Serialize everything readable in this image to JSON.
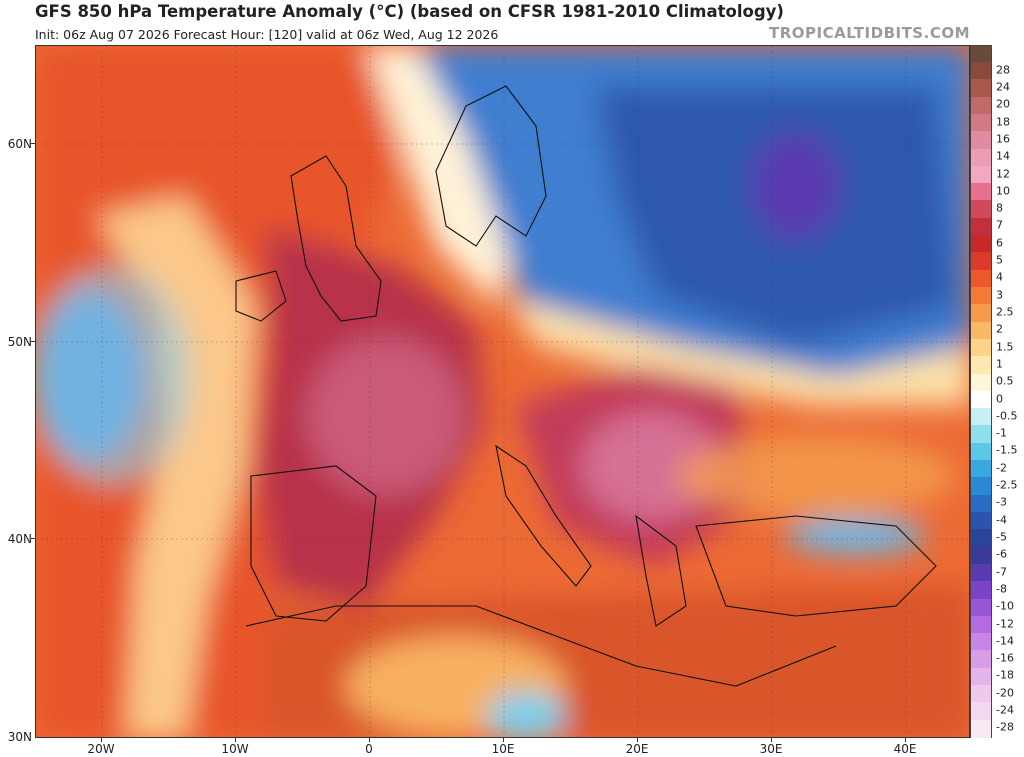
{
  "header": {
    "title": "GFS 850 hPa Temperature Anomaly (°C) (based on CFSR 1981-2010 Climatology)",
    "subtitle": "Init: 06z Aug 07 2026   Forecast Hour: [120]   valid at 06z Wed, Aug 12 2026",
    "brand": "TROPICALTIDBITS.COM"
  },
  "map": {
    "lat_labels": [
      "60N",
      "50N",
      "40N",
      "30N"
    ],
    "lon_labels": [
      "20W",
      "10W",
      "0",
      "10E",
      "20E",
      "30E",
      "40E"
    ],
    "regions": [
      {
        "name": "western-atlantic-warm",
        "fill": "#e8552a"
      },
      {
        "name": "atlantic-cool-anomaly",
        "fill": "#4a7fd0"
      },
      {
        "name": "scandinavia-baltic-cold",
        "fill": "#3a6ec8"
      },
      {
        "name": "western-europe-heat",
        "fill": "#b8304a"
      },
      {
        "name": "balkans-heat",
        "fill": "#c74a6a"
      },
      {
        "name": "north-africa-warm",
        "fill": "#d9542a"
      }
    ]
  },
  "colorbar": {
    "levels": [
      {
        "label": "28",
        "color": "#8a4a3a"
      },
      {
        "label": "24",
        "color": "#a85a4a"
      },
      {
        "label": "20",
        "color": "#c06a6a"
      },
      {
        "label": "18",
        "color": "#d07a86"
      },
      {
        "label": "16",
        "color": "#e08ca0"
      },
      {
        "label": "14",
        "color": "#ec9cb4"
      },
      {
        "label": "12",
        "color": "#f2a8c0"
      },
      {
        "label": "10",
        "color": "#e8708c"
      },
      {
        "label": "8",
        "color": "#d04a5c"
      },
      {
        "label": "7",
        "color": "#c2303e"
      },
      {
        "label": "6",
        "color": "#c8282a"
      },
      {
        "label": "5",
        "color": "#de3a2a"
      },
      {
        "label": "4",
        "color": "#ec5a2c"
      },
      {
        "label": "3",
        "color": "#f47a38"
      },
      {
        "label": "2.5",
        "color": "#f89a4c"
      },
      {
        "label": "2",
        "color": "#fab864"
      },
      {
        "label": "1.5",
        "color": "#fcd488"
      },
      {
        "label": "1",
        "color": "#fde8b0"
      },
      {
        "label": "0.5",
        "color": "#fff6d8"
      },
      {
        "label": "0",
        "color": "#ffffff"
      },
      {
        "label": "-0.5",
        "color": "#c8f0f4"
      },
      {
        "label": "-1",
        "color": "#8ee0ec"
      },
      {
        "label": "-1.5",
        "color": "#5cc8e8"
      },
      {
        "label": "-2",
        "color": "#38a8e0"
      },
      {
        "label": "-2.5",
        "color": "#2a88d4"
      },
      {
        "label": "-3",
        "color": "#2a6cc4"
      },
      {
        "label": "-4",
        "color": "#2a54b0"
      },
      {
        "label": "-5",
        "color": "#2a449c"
      },
      {
        "label": "-6",
        "color": "#3a3a98"
      },
      {
        "label": "-7",
        "color": "#5a3ab0"
      },
      {
        "label": "-8",
        "color": "#7a44c8"
      },
      {
        "label": "-10",
        "color": "#9a54d8"
      },
      {
        "label": "-12",
        "color": "#b46ae0"
      },
      {
        "label": "-14",
        "color": "#c884e6"
      },
      {
        "label": "-16",
        "color": "#d89ce8"
      },
      {
        "label": "-18",
        "color": "#e4b4ea"
      },
      {
        "label": "-20",
        "color": "#eec8ee"
      },
      {
        "label": "-24",
        "color": "#f4d8f0"
      },
      {
        "label": "-28",
        "color": "#f8e8f4"
      }
    ],
    "top_cap_color": "#6a4a3a"
  }
}
